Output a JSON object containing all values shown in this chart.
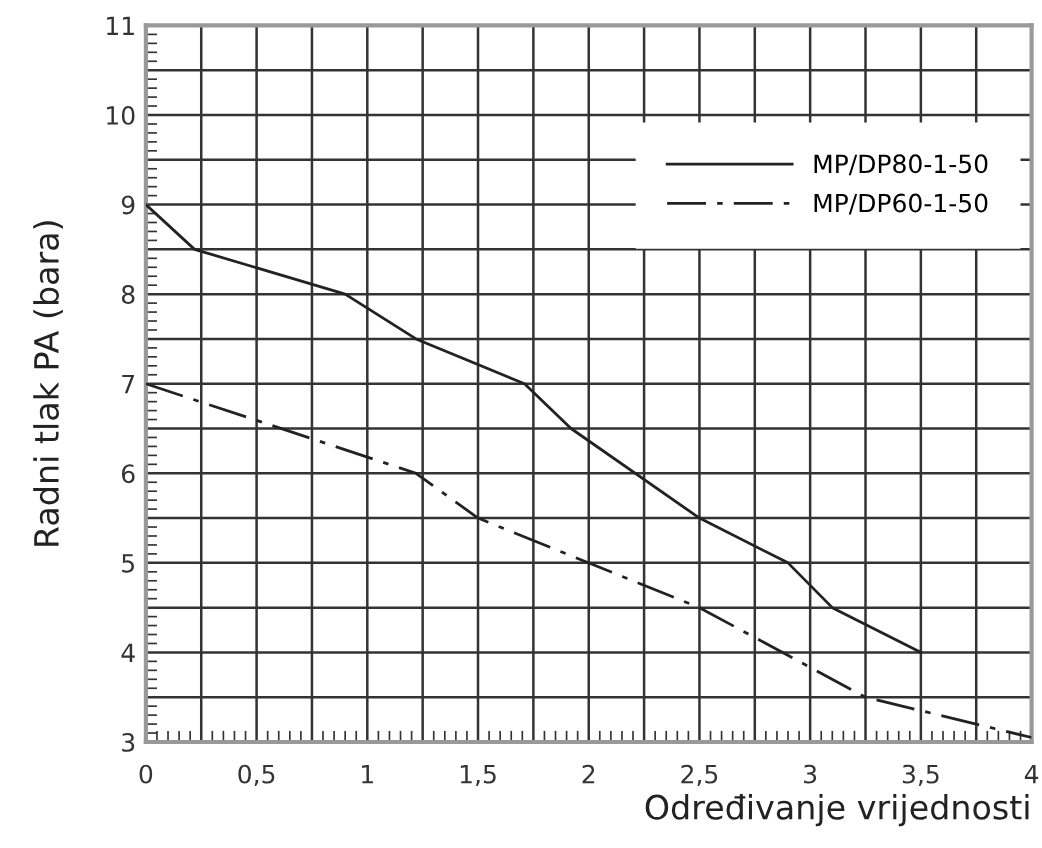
{
  "chart_data": {
    "type": "line",
    "xlabel": "Određivanje vrijednosti",
    "ylabel": "Radni tlak PA (bara)",
    "xlim": [
      0,
      4
    ],
    "ylim": [
      3,
      11
    ],
    "xticks": [
      0,
      {
        "value": 0.25,
        "label": null
      },
      {
        "value": 0.5,
        "label": "0,5"
      },
      {
        "value": 0.75,
        "label": null
      },
      1,
      {
        "value": 1.25,
        "label": null
      },
      {
        "value": 1.5,
        "label": "1,5"
      },
      {
        "value": 1.75,
        "label": null
      },
      2,
      {
        "value": 2.25,
        "label": null
      },
      {
        "value": 2.5,
        "label": "2,5"
      },
      {
        "value": 2.75,
        "label": null
      },
      3,
      {
        "value": 3.25,
        "label": null
      },
      {
        "value": 3.5,
        "label": "3,5"
      },
      {
        "value": 3.75,
        "label": null
      },
      4
    ],
    "yticks": [
      3,
      {
        "value": 3.5,
        "label": null
      },
      4,
      {
        "value": 4.5,
        "label": null
      },
      5,
      {
        "value": 5.5,
        "label": null
      },
      6,
      {
        "value": 6.5,
        "label": null
      },
      7,
      {
        "value": 7.5,
        "label": null
      },
      8,
      {
        "value": 8.5,
        "label": null
      },
      9,
      {
        "value": 9.5,
        "label": null
      },
      10,
      {
        "value": 10.5,
        "label": null
      },
      11
    ],
    "grid": true,
    "legend": "top right",
    "marker": "none",
    "series": [
      {
        "name": "MP/DP80-1-50",
        "color": "#222222",
        "line_style": "solid",
        "x": [
          0,
          0.22,
          0.9,
          1.22,
          1.71,
          1.92,
          2.5,
          2.9,
          3.1,
          3.5
        ],
        "values": [
          9,
          8.5,
          8,
          7.5,
          7,
          6.5,
          5.5,
          5,
          4.5,
          4
        ]
      },
      {
        "name": "MP/DP60-1-50",
        "color": "#222222",
        "line_style": "dashdot",
        "x": [
          0,
          1.22,
          1.5,
          2.5,
          3.25,
          4
        ],
        "values": [
          7,
          6,
          5.5,
          4.5,
          3.5,
          3.05
        ]
      }
    ]
  }
}
